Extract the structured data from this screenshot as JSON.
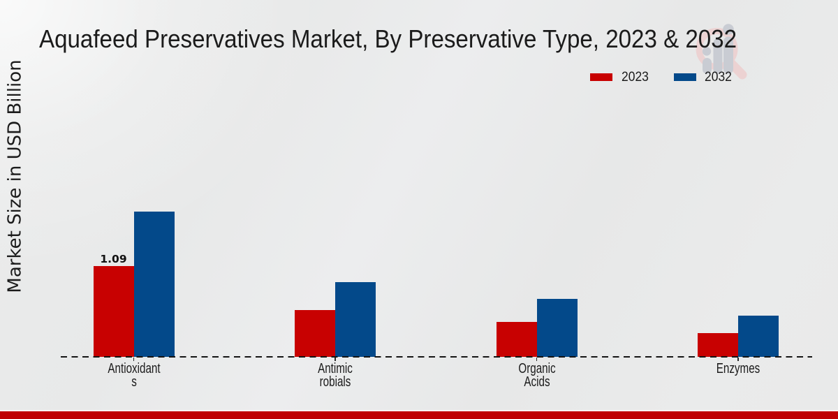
{
  "title": "Aquafeed Preservatives Market, By Preservative Type, 2023 & 2032",
  "ylabel": "Market Size in USD Billion",
  "legend": {
    "items": [
      {
        "label": "2023",
        "color": "#c80101"
      },
      {
        "label": "2032",
        "color": "#03498a"
      }
    ]
  },
  "chart_data": {
    "type": "bar",
    "categories": [
      "Antioxidants",
      "Antimicrobials",
      "Organic Acids",
      "Enzymes"
    ],
    "category_display_lines": [
      [
        "Antioxidant",
        "s"
      ],
      [
        "Antimic",
        "robials"
      ],
      [
        "Organic",
        "Acids"
      ],
      [
        "Enzymes"
      ]
    ],
    "series": [
      {
        "name": "2023",
        "color": "#c80101",
        "values": [
          1.09,
          0.56,
          0.42,
          0.28
        ]
      },
      {
        "name": "2032",
        "color": "#03498a",
        "values": [
          1.74,
          0.89,
          0.69,
          0.49
        ]
      }
    ],
    "bar_value_labels": [
      {
        "series": 0,
        "category": 0,
        "text": "1.09"
      }
    ],
    "title": "Aquafeed Preservatives Market, By Preservative Type, 2023 & 2032",
    "xlabel": "",
    "ylabel": "Market Size in USD Billion",
    "ylim": [
      0,
      2
    ],
    "grid": false,
    "legend_position": "top-right",
    "baseline_style": "dashed"
  },
  "watermark": {
    "name": "market-research-logo",
    "ring_color": "#ecd2d2",
    "bars_color": "#c9ccd3"
  },
  "footer": {
    "bar_color": "#bf0104"
  }
}
